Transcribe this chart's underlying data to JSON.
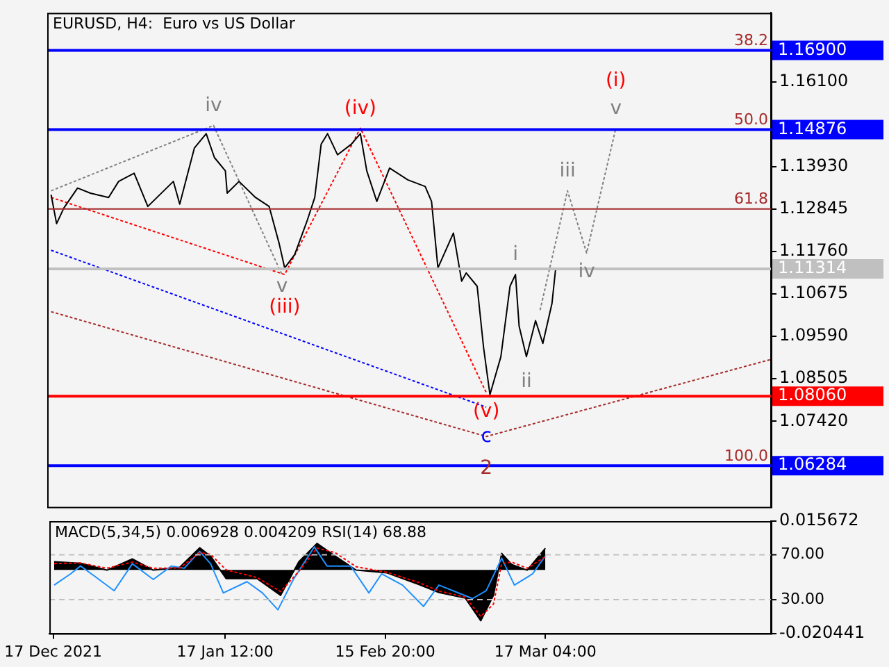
{
  "chart_data": [
    {
      "type": "line",
      "title": "EURUSD, H4:  Euro vs US Dollar",
      "marker": "none",
      "legend": false,
      "tick_labels": "y",
      "xlim": [
        "2021-12-16T07:00",
        "2022-04-27T12:00"
      ],
      "ylim": [
        1.0523,
        1.1786
      ],
      "yticks": [
        {
          "value": 1.161,
          "label": "1.16100"
        },
        {
          "value": 1.1393,
          "label": "1.13930"
        },
        {
          "value": 1.12845,
          "label": "1.12845"
        },
        {
          "value": 1.1176,
          "label": "1.11760"
        },
        {
          "value": 1.10675,
          "label": "1.10675"
        },
        {
          "value": 1.0959,
          "label": "1.09590"
        },
        {
          "value": 1.08505,
          "label": "1.08505"
        },
        {
          "value": 1.0742,
          "label": "1.07420"
        }
      ],
      "series": [
        {
          "color": "#000000",
          "line_style": "solid",
          "x": [
            "2021-12-17T00:00",
            "2021-12-18T00:00",
            "2021-12-19T08:00",
            "2021-12-21T20:00",
            "2021-12-24T04:00",
            "2021-12-27T12:00",
            "2021-12-29T08:00",
            "2022-01-01T04:00",
            "2022-01-03T16:00",
            "2022-01-08T08:00",
            "2022-01-09T12:00",
            "2022-01-12T04:00",
            "2022-01-14T08:00",
            "2022-01-15T20:00",
            "2022-01-17T20:00",
            "2022-01-18T04:00",
            "2022-01-20T08:00",
            "2022-01-23T08:00",
            "2022-01-25T20:00",
            "2022-01-27T16:00",
            "2022-01-28T16:00",
            "2022-01-30T12:00",
            "2022-02-01T20:00",
            "2022-02-03T04:00",
            "2022-02-04T08:00",
            "2022-02-05T12:00",
            "2022-02-07T08:00",
            "2022-02-09T20:00",
            "2022-02-11T12:00",
            "2022-02-12T16:00",
            "2022-02-14T12:00",
            "2022-02-16T20:00",
            "2022-02-20T04:00",
            "2022-02-23T08:00",
            "2022-02-24T12:00",
            "2022-02-25T16:00",
            "2022-02-28T12:00",
            "2022-03-02T00:00",
            "2022-03-02T20:00",
            "2022-03-04T20:00",
            "2022-03-06T00:00",
            "2022-03-07T04:00",
            "2022-03-09T04:00",
            "2022-03-10T20:00",
            "2022-03-11T20:00",
            "2022-03-12T12:00",
            "2022-03-13T20:00",
            "2022-03-15T12:00",
            "2022-03-16T20:00",
            "2022-03-18T12:00",
            "2022-03-19T04:00"
          ],
          "values": [
            1.1321,
            1.1247,
            1.1287,
            1.1338,
            1.1325,
            1.1314,
            1.1355,
            1.1376,
            1.1291,
            1.1355,
            1.1297,
            1.144,
            1.1477,
            1.1416,
            1.1382,
            1.1325,
            1.1355,
            1.1314,
            1.1291,
            1.1196,
            1.1134,
            1.1168,
            1.1257,
            1.1314,
            1.145,
            1.1477,
            1.1423,
            1.145,
            1.1477,
            1.1382,
            1.1304,
            1.1389,
            1.1359,
            1.1342,
            1.1304,
            1.1134,
            1.1223,
            1.11,
            1.1121,
            1.1087,
            1.0931,
            1.081,
            1.0907,
            1.1087,
            1.1117,
            1.0985,
            1.0907,
            1.0999,
            1.0941,
            1.1043,
            1.11314
          ]
        },
        {
          "color": "#808080",
          "line_style": "dotted",
          "x": [
            "2021-12-17T00:00",
            "2022-01-15T16:00",
            "2022-01-28T04:00"
          ],
          "values": [
            1.1331,
            1.1498,
            1.1117
          ]
        },
        {
          "color": "#ff0000",
          "line_style": "dotted",
          "x": [
            "2021-12-17T00:00",
            "2022-01-28T16:00",
            "2022-02-11T12:00",
            "2022-03-06T12:00"
          ],
          "values": [
            1.1314,
            1.1117,
            1.1491,
            1.0815
          ]
        },
        {
          "color": "#0000ff",
          "line_style": "dotted",
          "x": [
            "2021-12-17T00:00",
            "2022-03-06T12:00"
          ],
          "values": [
            1.1179,
            1.0778
          ]
        },
        {
          "color": "#a52a2a",
          "line_style": "dotted",
          "x": [
            "2021-12-17T00:00",
            "2022-03-06T12:00",
            "2022-04-27T12:00"
          ],
          "values": [
            1.1022,
            1.0703,
            1.09
          ]
        },
        {
          "color": "#808080",
          "line_style": "dotted",
          "x": [
            "2022-03-16T08:00",
            "2022-03-21T08:00",
            "2022-03-24T20:00",
            "2022-03-30T04:00"
          ],
          "values": [
            1.1026,
            1.1331,
            1.1172,
            1.1491
          ]
        }
      ],
      "ref_lines": [
        {
          "axis": "y",
          "value": 1.169,
          "label": "1.16900",
          "color": "#0000ff"
        },
        {
          "axis": "y",
          "value": 1.14876,
          "label": "1.14876",
          "color": "#0000ff"
        },
        {
          "axis": "y",
          "value": 1.12846,
          "color": "#a52a2a"
        },
        {
          "axis": "y",
          "value": 1.11314,
          "label": "1.11314",
          "color": "#c0c0c0"
        },
        {
          "axis": "y",
          "value": 1.0806,
          "label": "1.08060",
          "color": "#ff0000"
        },
        {
          "axis": "y",
          "value": 1.06284,
          "label": "1.06284",
          "color": "#0000ff"
        }
      ],
      "annotations": [
        {
          "text": "iv",
          "x": "2022-01-15T16:00",
          "y": 1.1498
        },
        {
          "text": "(iv)",
          "x": "2022-02-11T12:00",
          "y": 1.1491
        },
        {
          "text": "v",
          "x": "2022-01-28T04:00",
          "y": 1.1117
        },
        {
          "text": "(iii)",
          "x": "2022-01-28T16:00",
          "y": 1.1117
        },
        {
          "text": "(v)",
          "x": "2022-03-06T12:00",
          "y": 1.0815
        },
        {
          "text": "c",
          "x": "2022-03-06T12:00",
          "y": 1.0703
        },
        {
          "text": "2",
          "x": "2022-03-06T12:00",
          "y": 1.0703
        },
        {
          "text": "i",
          "x": "2022-03-11T20:00",
          "y": 1.1117
        },
        {
          "text": "ii",
          "x": "2022-03-13T20:00",
          "y": 1.0907
        },
        {
          "text": "iii",
          "x": "2022-03-21T08:00",
          "y": 1.1331
        },
        {
          "text": "iv",
          "x": "2022-03-24T20:00",
          "y": 1.1172
        },
        {
          "text": "(i)",
          "x": "2022-03-30T04:00",
          "y": 1.1491
        },
        {
          "text": "v",
          "x": "2022-03-30T04:00",
          "y": 1.1491
        },
        {
          "text": "38.2",
          "y": 1.169
        },
        {
          "text": "50.0",
          "y": 1.14876
        },
        {
          "text": "61.8",
          "y": 1.12846
        },
        {
          "text": "100.0",
          "y": 1.06284
        }
      ]
    },
    {
      "type": "line",
      "title": "MACD(5,34,5) 0.006928 0.004209 RSI(14) 68.88",
      "marker": "none",
      "legend": false,
      "xlim": [
        "2021-12-16T07:00",
        "2022-04-27T12:00"
      ],
      "xticks": [
        {
          "value": "2021-12-17T00:00",
          "label": "17 Dec 2021"
        },
        {
          "value": "2022-01-17T12:00",
          "label": "17 Jan 12:00"
        },
        {
          "value": "2022-02-15T20:00",
          "label": "15 Feb 20:00"
        },
        {
          "value": "2022-03-17T04:00",
          "label": "17 Mar 04:00"
        }
      ],
      "ylim": [
        -0.020441,
        0.015672
      ],
      "yticks": [
        -0.020441,
        0.015672
      ],
      "y2lim": [
        0,
        100
      ],
      "y2ticks": [
        {
          "value": 30,
          "label": "30.00"
        },
        {
          "value": 70,
          "label": "70.00"
        }
      ],
      "series": [
        {
          "type": "area",
          "color": "#000000",
          "line_style": "solid",
          "x": [
            "2021-12-17T04:00",
            "2021-12-22T00:00",
            "2021-12-26T20:00",
            "2021-12-31T12:00",
            "2022-01-04T08:00",
            "2022-01-09T04:00",
            "2022-01-12T20:00",
            "2022-01-14T20:00",
            "2022-01-17T16:00",
            "2022-01-23T08:00",
            "2022-01-27T16:00",
            "2022-01-31T00:00",
            "2022-02-03T08:00",
            "2022-02-06T16:00",
            "2022-02-10T12:00",
            "2022-02-16T04:00",
            "2022-02-21T20:00",
            "2022-02-25T16:00",
            "2022-03-02T12:00",
            "2022-03-05T08:00",
            "2022-03-07T16:00",
            "2022-03-09T04:00",
            "2022-03-11T00:00",
            "2022-03-13T20:00",
            "2022-03-17T04:00"
          ],
          "values": [
            0.0026,
            0.0021,
            -0.0001,
            0.0035,
            -0.0001,
            0.0008,
            0.0071,
            0.0044,
            -0.0028,
            -0.0028,
            -0.0082,
            0.0026,
            0.0085,
            0.0044,
            -0.0001,
            -0.001,
            -0.0046,
            -0.0073,
            -0.0091,
            -0.0164,
            -0.0082,
            0.0053,
            0.0017,
            -0.0001,
            0.006928
          ]
        },
        {
          "color": "#ff0000",
          "line_style": "dotted",
          "x": [
            "2021-12-17T04:00",
            "2021-12-22T00:00",
            "2021-12-26T20:00",
            "2021-12-31T12:00",
            "2022-01-04T08:00",
            "2022-01-09T04:00",
            "2022-01-12T20:00",
            "2022-01-14T20:00",
            "2022-01-17T16:00",
            "2022-01-23T08:00",
            "2022-01-27T16:00",
            "2022-01-31T00:00",
            "2022-02-03T08:00",
            "2022-02-06T16:00",
            "2022-02-10T12:00",
            "2022-02-16T04:00",
            "2022-02-21T20:00",
            "2022-02-25T16:00",
            "2022-03-02T12:00",
            "2022-03-05T08:00",
            "2022-03-07T16:00",
            "2022-03-09T04:00",
            "2022-03-11T00:00",
            "2022-03-13T20:00",
            "2022-03-17T04:00"
          ],
          "values": [
            0.002,
            0.0022,
            0.0005,
            0.0025,
            0.0005,
            0.0006,
            0.0055,
            0.005,
            0.0,
            -0.0025,
            -0.007,
            -0.0005,
            0.007,
            0.0055,
            0.001,
            -0.0008,
            -0.004,
            -0.0068,
            -0.0088,
            -0.015,
            -0.011,
            0.002,
            0.0025,
            0.0005,
            0.004209
          ]
        },
        {
          "color": "#1e90ff",
          "line_style": "solid",
          "axis": "y2",
          "x": [
            "2021-12-17T04:00",
            "2021-12-20T04:00",
            "2021-12-22T00:00",
            "2021-12-24T20:00",
            "2021-12-28T04:00",
            "2021-12-31T12:00",
            "2022-01-04T08:00",
            "2022-01-07T16:00",
            "2022-01-10T00:00",
            "2022-01-12T20:00",
            "2022-01-14T20:00",
            "2022-01-17T04:00",
            "2022-01-21T12:00",
            "2022-01-24T08:00",
            "2022-01-27T04:00",
            "2022-01-30T00:00",
            "2022-02-02T20:00",
            "2022-02-05T04:00",
            "2022-02-09T12:00",
            "2022-02-12T20:00",
            "2022-02-15T04:00",
            "2022-02-19T00:00",
            "2022-02-22T20:00",
            "2022-02-25T16:00",
            "2022-03-03T20:00",
            "2022-03-06T08:00",
            "2022-03-09T04:00",
            "2022-03-11T12:00",
            "2022-03-14T20:00",
            "2022-03-17T04:00"
          ],
          "values": [
            43,
            53,
            60,
            50,
            38,
            62,
            48,
            60,
            58,
            73,
            62,
            36,
            46,
            36,
            21,
            48,
            77,
            60,
            60,
            36,
            53,
            43,
            24,
            43,
            31,
            38,
            67,
            43,
            53,
            68.88
          ]
        }
      ],
      "ref_lines": [
        {
          "axis": "y2",
          "value": 70,
          "color": "#c0c0c0",
          "line_style": "dashed"
        },
        {
          "axis": "y2",
          "value": 30,
          "color": "#c0c0c0",
          "line_style": "dashed"
        }
      ]
    }
  ]
}
